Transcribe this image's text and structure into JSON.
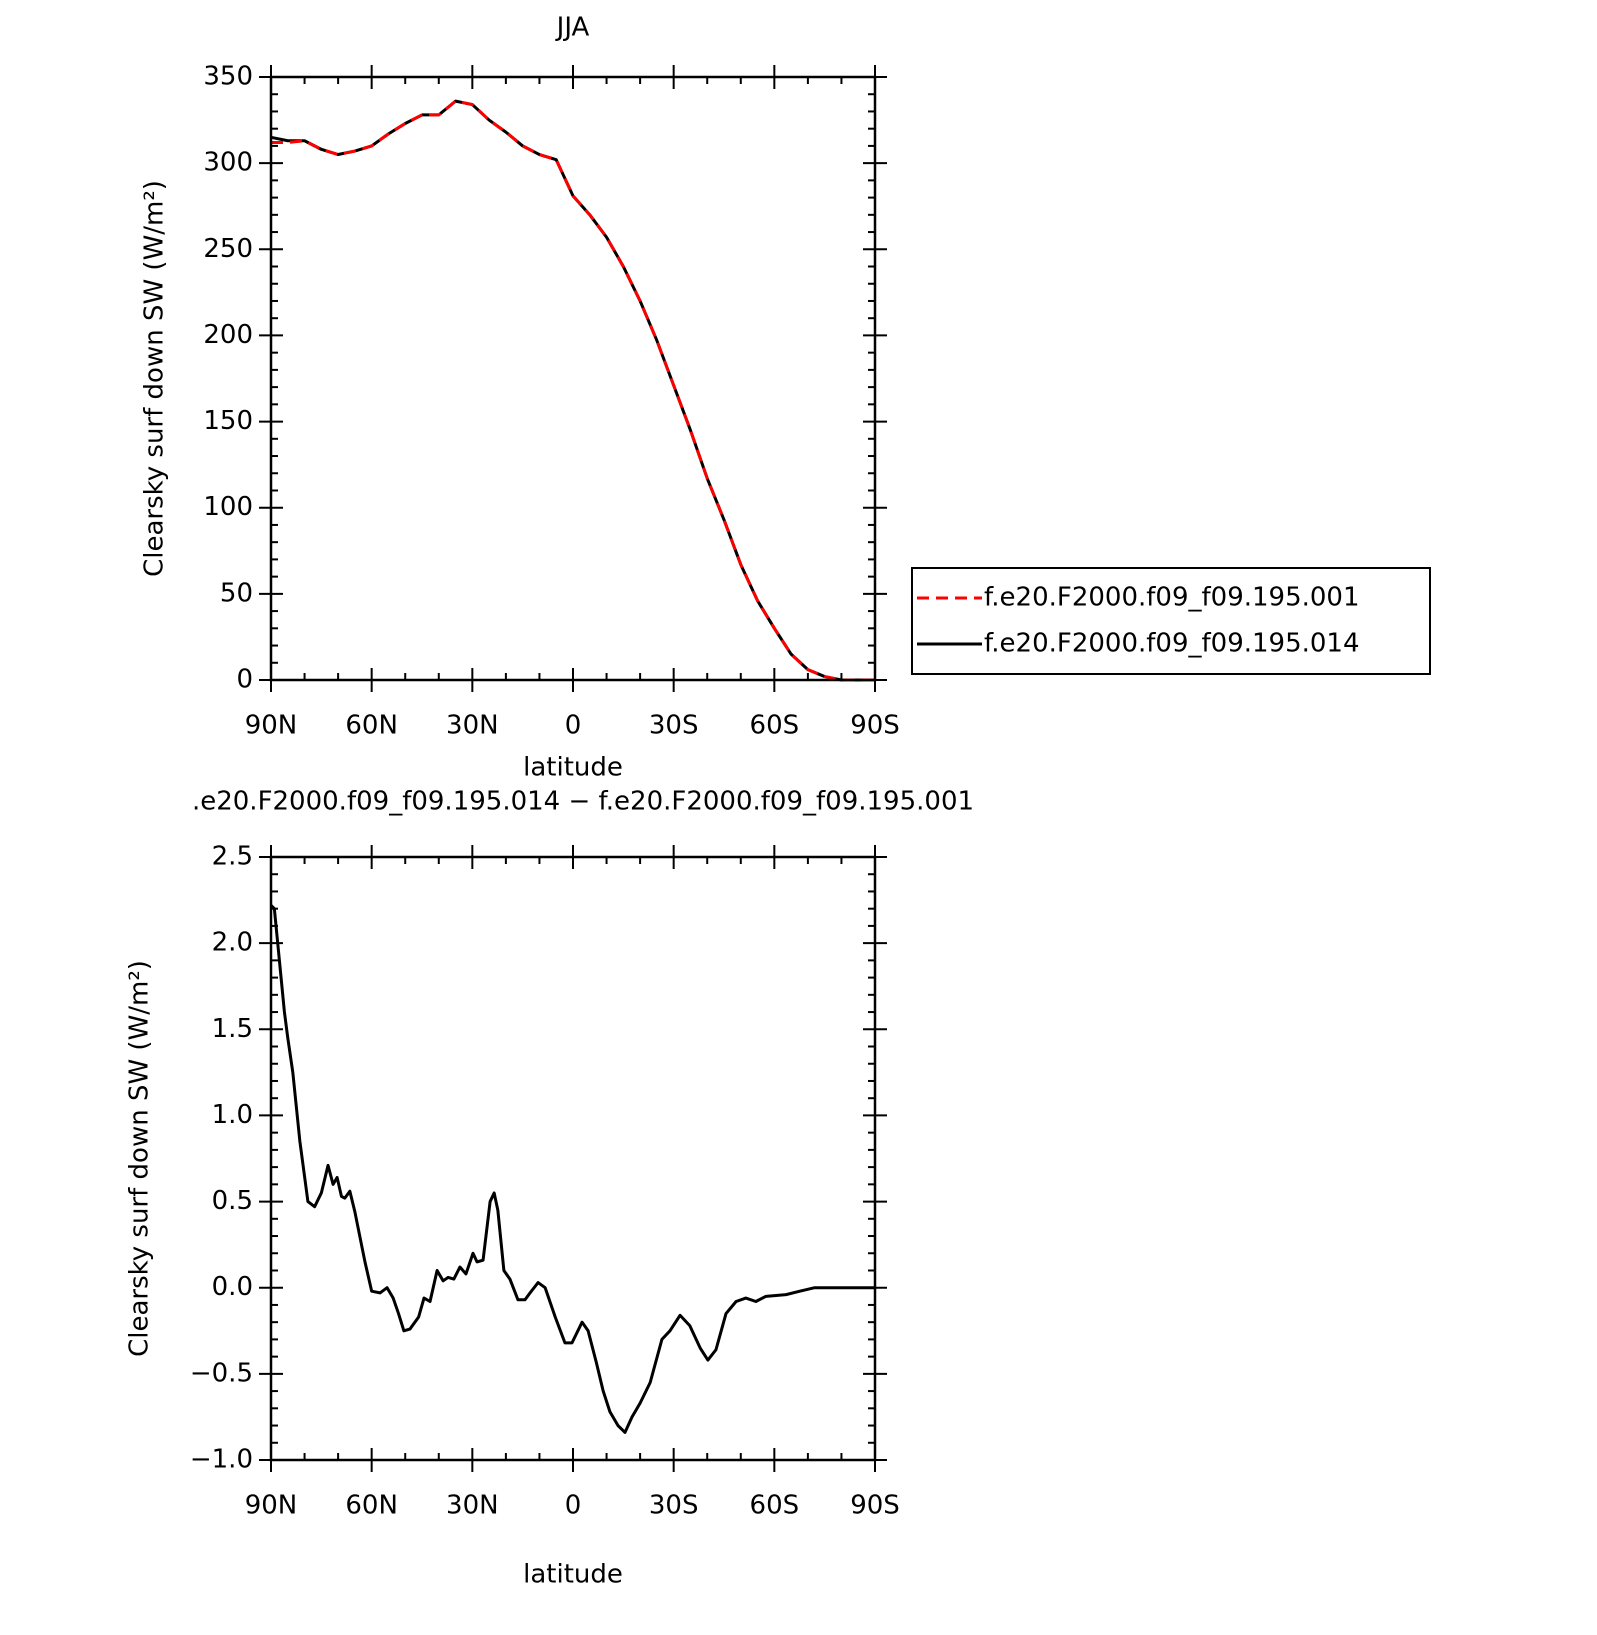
{
  "chart_data": [
    {
      "type": "line",
      "title": "JJA",
      "ylabel": "Clearsky surf down SW (W/m²)",
      "xlabel": "latitude",
      "x": [
        90,
        85,
        80,
        75,
        70,
        65,
        60,
        55,
        50,
        45,
        40,
        35,
        30,
        25,
        20,
        15,
        10,
        5,
        0,
        -5,
        -10,
        -15,
        -20,
        -25,
        -30,
        -35,
        -40,
        -45,
        -50,
        -55,
        -60,
        -65,
        -70,
        -75,
        -80,
        -85,
        -90
      ],
      "series": [
        {
          "name": "f.e20.F2000.f09_f09.195.001",
          "color": "#ff0000",
          "dashed": true,
          "values": [
            312,
            312,
            313,
            308,
            305,
            307,
            310,
            317,
            323,
            328,
            328,
            336,
            334,
            325,
            318,
            310,
            305,
            302,
            281,
            270,
            257,
            240,
            220,
            197,
            171,
            145,
            117,
            93,
            67,
            46,
            30,
            15,
            6,
            2,
            0,
            0,
            0
          ]
        },
        {
          "name": "f.e20.F2000.f09_f09.195.014",
          "color": "#000000",
          "dashed": false,
          "values": [
            315,
            313,
            313,
            308,
            305,
            307,
            310,
            317,
            323,
            328,
            328,
            336,
            334,
            325,
            318,
            310,
            305,
            302,
            281,
            270,
            257,
            240,
            220,
            197,
            171,
            145,
            117,
            93,
            67,
            46,
            30,
            15,
            6,
            2,
            0,
            0,
            0
          ]
        }
      ],
      "xlim": [
        90,
        -90
      ],
      "xticks": [
        {
          "value": 90,
          "label": "90N"
        },
        {
          "value": 60,
          "label": "60N"
        },
        {
          "value": 30,
          "label": "30N"
        },
        0,
        {
          "value": -30,
          "label": "30S"
        },
        {
          "value": -60,
          "label": "60S"
        },
        {
          "value": -90,
          "label": "90S"
        }
      ],
      "ylim": [
        0,
        350
      ],
      "yticks": [
        0,
        50,
        100,
        150,
        200,
        250,
        300,
        350
      ],
      "legend": "right"
    },
    {
      "type": "line",
      "title": ".e20.F2000.f09_f09.195.014 − f.e20.F2000.f09_f09.195.001",
      "ylabel": "Clearsky surf down SW (W/m²)",
      "xlabel": "latitude",
      "x": [
        90,
        89,
        88,
        86,
        85,
        83.5,
        81.4,
        79,
        77,
        75,
        73,
        71.5,
        70.3,
        69,
        68,
        66.5,
        65,
        62,
        60,
        57.5,
        55.4,
        53.6,
        52,
        50.4,
        48.6,
        46,
        44.4,
        42.6,
        40.5,
        38.7,
        37.2,
        35.5,
        33.7,
        31.9,
        29.8,
        28.6,
        26.8,
        24.7,
        23.5,
        22.4,
        20.6,
        18.8,
        16.4,
        14.3,
        12.8,
        10.4,
        8.3,
        5.3,
        2.4,
        0.3,
        -2.7,
        -4.5,
        -6.9,
        -9,
        -11,
        -13.4,
        -15.5,
        -17.6,
        -20,
        -23,
        -26.5,
        -28.9,
        -31.9,
        -34.8,
        -37.9,
        -40.2,
        -42.6,
        -45.6,
        -48.6,
        -51.5,
        -54.5,
        -57.5,
        -63.5,
        -67.6,
        -72,
        -90
      ],
      "values": [
        2.22,
        2.2,
        2.0,
        1.6,
        1.45,
        1.25,
        0.85,
        0.5,
        0.47,
        0.55,
        0.71,
        0.6,
        0.64,
        0.53,
        0.52,
        0.56,
        0.44,
        0.15,
        -0.02,
        -0.03,
        0.0,
        -0.06,
        -0.15,
        -0.25,
        -0.24,
        -0.17,
        -0.06,
        -0.08,
        0.1,
        0.04,
        0.06,
        0.05,
        0.12,
        0.08,
        0.2,
        0.15,
        0.16,
        0.5,
        0.55,
        0.45,
        0.1,
        0.05,
        -0.07,
        -0.07,
        -0.03,
        0.03,
        0.0,
        -0.17,
        -0.32,
        -0.32,
        -0.2,
        -0.25,
        -0.43,
        -0.6,
        -0.72,
        -0.8,
        -0.84,
        -0.75,
        -0.67,
        -0.55,
        -0.3,
        -0.25,
        -0.16,
        -0.22,
        -0.35,
        -0.42,
        -0.36,
        -0.15,
        -0.08,
        -0.06,
        -0.08,
        -0.05,
        -0.04,
        -0.02,
        0.0,
        0.0
      ],
      "color": "#000000",
      "xlim": [
        90,
        -90
      ],
      "xticks": [
        {
          "value": 90,
          "label": "90N"
        },
        {
          "value": 60,
          "label": "60N"
        },
        {
          "value": 30,
          "label": "30N"
        },
        0,
        {
          "value": -30,
          "label": "30S"
        },
        {
          "value": -60,
          "label": "60S"
        },
        {
          "value": -90,
          "label": "90S"
        }
      ],
      "ylim": [
        -1.0,
        2.5
      ],
      "yticks": [
        {
          "value": -1.0,
          "label": "−1.0"
        },
        {
          "value": -0.5,
          "label": "−0.5"
        },
        {
          "value": 0,
          "label": "0.0"
        },
        0.5,
        {
          "value": 1,
          "label": "1.0"
        },
        {
          "value": 1.5,
          "label": "1.5"
        },
        {
          "value": 2,
          "label": "2.0"
        },
        2.5
      ]
    }
  ]
}
